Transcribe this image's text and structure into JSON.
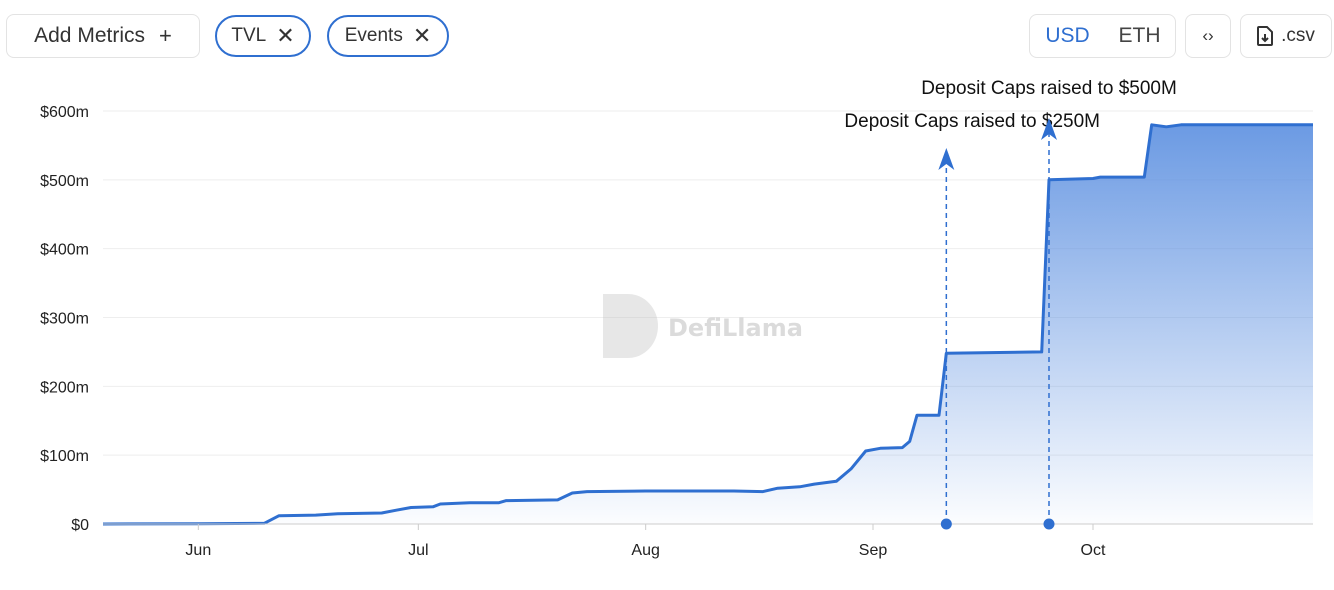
{
  "toolbar": {
    "add_metrics_label": "Add Metrics",
    "add_icon": "plus-icon",
    "metrics": [
      {
        "label": "TVL"
      },
      {
        "label": "Events"
      }
    ],
    "remove_icon": "close-icon",
    "currency_options": [
      "USD",
      "ETH"
    ],
    "selected_currency": "USD",
    "embed_icon": "code-icon",
    "csv_label": ".csv",
    "csv_icon": "file-download-icon"
  },
  "watermark": "DefiLlama",
  "colors": {
    "accent": "#2f6fd0",
    "line": "#2f6fd0",
    "area_top": "#5b8fe0"
  },
  "chart_data": {
    "type": "area",
    "title": "",
    "xlabel": "",
    "ylabel": "",
    "x_range": [
      "2023-05-19",
      "2023-10-31"
    ],
    "ylim": [
      0,
      600
    ],
    "y_ticks": [
      "$0",
      "$100m",
      "$200m",
      "$300m",
      "$400m",
      "$500m",
      "$600m"
    ],
    "y_tick_values": [
      0,
      100,
      200,
      300,
      400,
      500,
      600
    ],
    "x_ticks": [
      {
        "label": "Jun",
        "date": "2023-06-01"
      },
      {
        "label": "Jul",
        "date": "2023-07-01"
      },
      {
        "label": "Aug",
        "date": "2023-08-01"
      },
      {
        "label": "Sep",
        "date": "2023-09-01"
      },
      {
        "label": "Oct",
        "date": "2023-10-01"
      }
    ],
    "grid": "horizontal",
    "series": [
      {
        "unit": "USD millions",
        "points": [
          [
            "2023-05-19",
            0
          ],
          [
            "2023-06-01",
            0.5
          ],
          [
            "2023-06-10",
            1
          ],
          [
            "2023-06-12",
            12
          ],
          [
            "2023-06-17",
            13
          ],
          [
            "2023-06-20",
            15
          ],
          [
            "2023-06-26",
            16
          ],
          [
            "2023-06-28",
            20
          ],
          [
            "2023-06-30",
            24
          ],
          [
            "2023-07-03",
            25
          ],
          [
            "2023-07-04",
            29
          ],
          [
            "2023-07-08",
            31
          ],
          [
            "2023-07-12",
            31
          ],
          [
            "2023-07-13",
            34
          ],
          [
            "2023-07-20",
            35
          ],
          [
            "2023-07-22",
            45
          ],
          [
            "2023-07-24",
            47
          ],
          [
            "2023-08-01",
            48
          ],
          [
            "2023-08-13",
            48
          ],
          [
            "2023-08-17",
            47
          ],
          [
            "2023-08-19",
            52
          ],
          [
            "2023-08-22",
            54
          ],
          [
            "2023-08-24",
            58
          ],
          [
            "2023-08-27",
            62
          ],
          [
            "2023-08-29",
            80
          ],
          [
            "2023-08-31",
            106
          ],
          [
            "2023-09-02",
            110
          ],
          [
            "2023-09-05",
            111
          ],
          [
            "2023-09-06",
            120
          ],
          [
            "2023-09-07",
            158
          ],
          [
            "2023-09-10",
            158
          ],
          [
            "2023-09-11",
            248
          ],
          [
            "2023-09-24",
            250
          ],
          [
            "2023-09-25",
            500
          ],
          [
            "2023-10-01",
            502
          ],
          [
            "2023-10-02",
            504
          ],
          [
            "2023-10-08",
            504
          ],
          [
            "2023-10-09",
            580
          ],
          [
            "2023-10-11",
            577
          ],
          [
            "2023-10-13",
            580
          ],
          [
            "2023-10-31",
            580
          ]
        ]
      }
    ],
    "annotations": [
      {
        "date": "2023-09-11",
        "label": "Deposit Caps raised to $250M"
      },
      {
        "date": "2023-09-25",
        "label": "Deposit Caps raised to $500M"
      }
    ]
  }
}
